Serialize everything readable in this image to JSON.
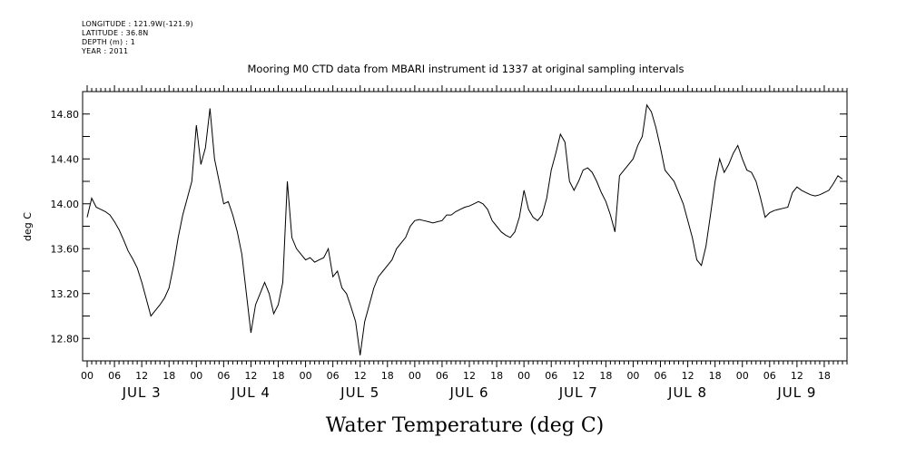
{
  "meta_lines": {
    "longitude": "LONGITUDE : 121.9W(-121.9)",
    "latitude": "LATITUDE : 36.8N",
    "depth": "DEPTH (m) : 1",
    "year": "YEAR : 2011"
  },
  "chart_data": {
    "type": "line",
    "title": "Mooring M0 CTD data from MBARI instrument id 1337 at original sampling intervals",
    "xlabel": "Water Temperature (deg C)",
    "ylabel": "deg C",
    "ylim": [
      12.6,
      15.0
    ],
    "y_ticks": [
      "12.80",
      "13.20",
      "13.60",
      "14.00",
      "14.40",
      "14.80"
    ],
    "y_tick_values": [
      12.8,
      13.2,
      13.6,
      14.0,
      14.4,
      14.8
    ],
    "xlim_hours": [
      -1,
      167
    ],
    "hour_tick_labels": [
      "00",
      "06",
      "12",
      "18"
    ],
    "day_labels": [
      "JUL 3",
      "JUL 4",
      "JUL 5",
      "JUL 6",
      "JUL 7",
      "JUL 8",
      "JUL 9"
    ],
    "grid": false,
    "series": [
      {
        "values_hours": [
          0,
          1,
          2,
          3,
          4,
          5,
          6,
          7,
          8,
          9,
          10,
          11,
          12,
          13,
          14,
          15,
          16,
          17,
          18,
          19,
          20,
          21,
          22,
          23,
          24,
          25,
          26,
          27,
          28,
          29,
          30,
          31,
          32,
          33,
          34,
          35,
          36,
          37,
          38,
          39,
          40,
          41,
          42,
          43,
          44,
          45,
          46,
          47,
          48,
          49,
          50,
          51,
          52,
          53,
          54,
          55,
          56,
          57,
          58,
          59,
          60,
          61,
          62,
          63,
          64,
          65,
          66,
          67,
          68,
          69,
          70,
          71,
          72,
          73,
          74,
          75,
          76,
          77,
          78,
          79,
          80,
          81,
          82,
          83,
          84,
          85,
          86,
          87,
          88,
          89,
          90,
          91,
          92,
          93,
          94,
          95,
          96,
          97,
          98,
          99,
          100,
          101,
          102,
          103,
          104,
          105,
          106,
          107,
          108,
          109,
          110,
          111,
          112,
          113,
          114,
          115,
          116,
          117,
          118,
          119,
          120,
          121,
          122,
          123,
          124,
          125,
          126,
          127,
          128,
          129,
          130,
          131,
          132,
          133,
          134,
          135,
          136,
          137,
          138,
          139,
          140,
          141,
          142,
          143,
          144,
          145,
          146,
          147,
          148,
          149,
          150,
          151,
          152,
          153,
          154,
          155,
          156,
          157,
          158,
          159,
          160,
          161,
          162,
          163,
          164,
          165,
          166
        ],
        "values_temp": [
          13.88,
          14.05,
          13.97,
          13.95,
          13.93,
          13.9,
          13.84,
          13.77,
          13.68,
          13.58,
          13.51,
          13.43,
          13.3,
          13.15,
          13.0,
          13.05,
          13.1,
          13.16,
          13.25,
          13.45,
          13.7,
          13.9,
          14.05,
          14.2,
          14.7,
          14.35,
          14.5,
          14.85,
          14.4,
          14.2,
          14.0,
          14.02,
          13.9,
          13.75,
          13.55,
          13.2,
          12.85,
          13.1,
          13.2,
          13.3,
          13.2,
          13.02,
          13.1,
          13.3,
          14.2,
          13.7,
          13.6,
          13.55,
          13.5,
          13.52,
          13.48,
          13.5,
          13.52,
          13.6,
          13.35,
          13.4,
          13.25,
          13.2,
          13.08,
          12.95,
          12.65,
          12.95,
          13.1,
          13.25,
          13.35,
          13.4,
          13.45,
          13.5,
          13.6,
          13.65,
          13.7,
          13.8,
          13.85,
          13.86,
          13.85,
          13.84,
          13.83,
          13.84,
          13.85,
          13.9,
          13.9,
          13.93,
          13.95,
          13.97,
          13.98,
          14.0,
          14.02,
          14.0,
          13.95,
          13.85,
          13.8,
          13.75,
          13.72,
          13.7,
          13.75,
          13.88,
          14.12,
          13.95,
          13.88,
          13.85,
          13.9,
          14.05,
          14.3,
          14.45,
          14.62,
          14.55,
          14.2,
          14.12,
          14.2,
          14.3,
          14.32,
          14.28,
          14.2,
          14.1,
          14.02,
          13.9,
          13.75,
          14.25,
          14.3,
          14.35,
          14.4,
          14.52,
          14.6,
          14.88,
          14.82,
          14.68,
          14.5,
          14.3,
          14.25,
          14.2,
          14.1,
          14.0,
          13.85,
          13.7,
          13.5,
          13.45,
          13.62,
          13.9,
          14.2,
          14.4,
          14.28,
          14.35,
          14.45,
          14.52,
          14.4,
          14.3,
          14.28,
          14.2,
          14.05,
          13.88,
          13.92,
          13.94,
          13.95,
          13.96,
          13.97,
          14.1,
          14.15,
          14.12,
          14.1,
          14.08,
          14.07,
          14.08,
          14.1,
          14.12,
          14.18,
          14.25,
          14.22
        ]
      }
    ]
  }
}
